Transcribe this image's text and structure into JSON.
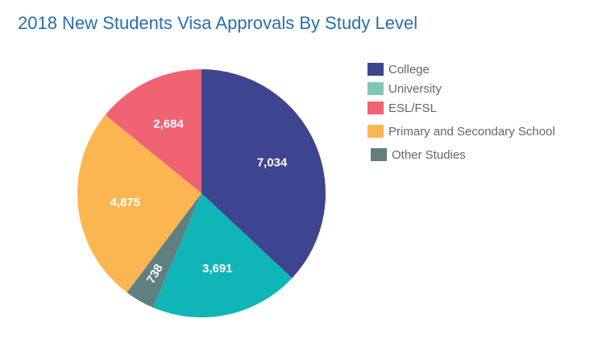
{
  "title": "2018 New Students Visa Approvals By Study Level",
  "chart_data": {
    "type": "pie",
    "title": "2018 New Students Visa Approvals By Study Level",
    "legend_position": "right",
    "slices": [
      {
        "label": "College",
        "value": 7034,
        "display": "7,034",
        "color": "#3d4590"
      },
      {
        "label": "University",
        "value": 3691,
        "display": "3,691",
        "color": "#10b5b8"
      },
      {
        "label": "Other Studies",
        "value": 738,
        "display": "738",
        "color": "#5f7f80"
      },
      {
        "label": "Primary and Secondary School",
        "value": 4875,
        "display": "4,875",
        "color": "#fbb652"
      },
      {
        "label": "ESL/FSL",
        "value": 2684,
        "display": "2,684",
        "color": "#f06373"
      }
    ]
  },
  "legend": [
    {
      "label": "College",
      "color": "#3d4590"
    },
    {
      "label": "University",
      "color": "#82c6b6"
    },
    {
      "label": "ESL/FSL",
      "color": "#f06373"
    },
    {
      "label": "Primary and Secondary School",
      "color": "#fbb652"
    },
    {
      "label": "Other Studies",
      "color": "#5f7f80"
    }
  ]
}
